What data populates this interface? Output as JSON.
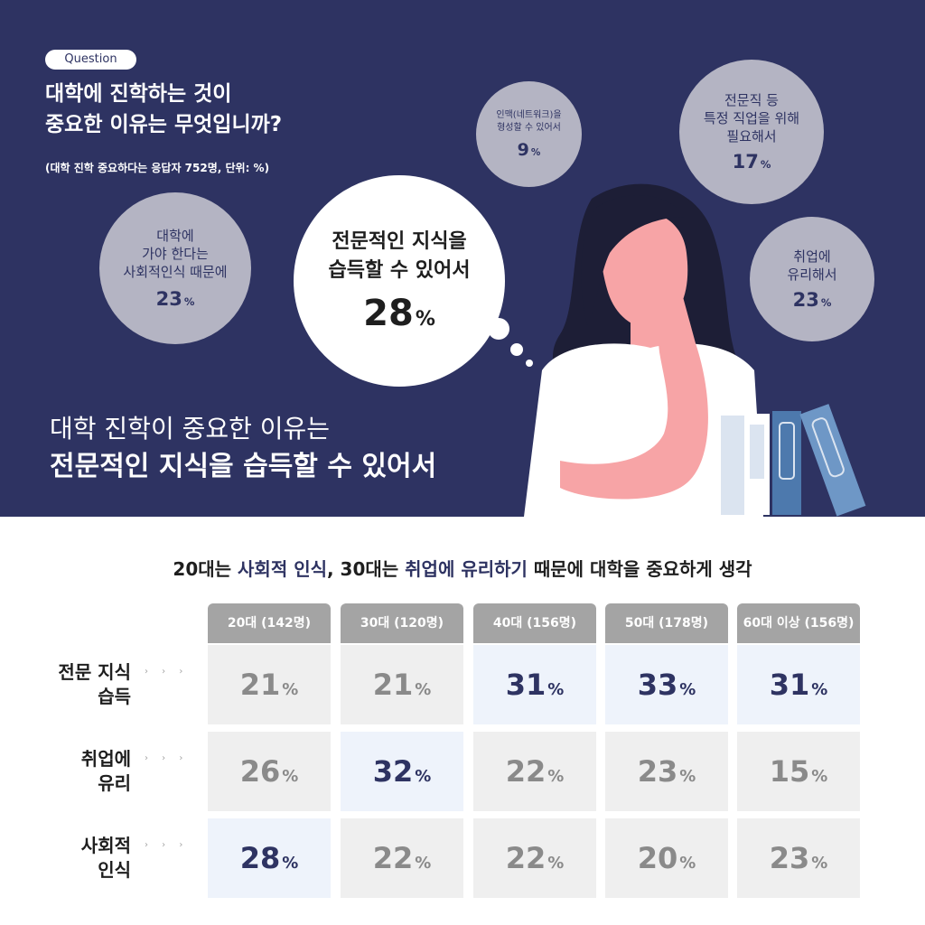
{
  "question_badge": "Question",
  "question_title": [
    "대학에 진학하는 것이",
    "중요한 이유는 무엇입니까?"
  ],
  "question_note": "(대학 진학 중요하다는 응답자 752명, 단위: %)",
  "bubbles": {
    "social": {
      "label": [
        "대학에",
        "가야 한다는",
        "사회적인식 때문에"
      ],
      "value": "23",
      "unit": "%"
    },
    "network": {
      "label": [
        "인맥(네트워크)을",
        "형성할 수 있어서"
      ],
      "value": "9",
      "unit": "%"
    },
    "job": {
      "label": [
        "전문직 등",
        "특정 직업을 위해",
        "필요해서"
      ],
      "value": "17",
      "unit": "%"
    },
    "employ": {
      "label": [
        "취업에",
        "유리해서"
      ],
      "value": "23",
      "unit": "%"
    },
    "main": {
      "label": [
        "전문적인 지식을",
        "습득할 수 있어서"
      ],
      "value": "28",
      "unit": "%"
    }
  },
  "headline": [
    "대학 진학이 중요한 이유는",
    "전문적인 지식을 습득할 수 있어서"
  ],
  "subtitle": {
    "parts": [
      "20대는 ",
      "사회적 인식",
      ", 30대는 ",
      "취업에 유리하기",
      " 때문에 대학을 중요하게 생각"
    ]
  },
  "chart_data": {
    "type": "table",
    "columns": [
      "20대 (142명)",
      "30대 (120명)",
      "40대 (156명)",
      "50대 (178명)",
      "60대 이상 (156명)"
    ],
    "rows": [
      {
        "label": [
          "전문 지식",
          "습득"
        ],
        "values": [
          21,
          21,
          31,
          33,
          31
        ],
        "highlight": [
          false,
          false,
          true,
          true,
          true
        ]
      },
      {
        "label": [
          "취업에",
          "유리"
        ],
        "values": [
          26,
          32,
          22,
          23,
          15
        ],
        "highlight": [
          false,
          true,
          false,
          false,
          false
        ]
      },
      {
        "label": [
          "사회적",
          "인식"
        ],
        "values": [
          28,
          22,
          22,
          20,
          23
        ],
        "highlight": [
          true,
          false,
          false,
          false,
          false
        ]
      }
    ],
    "unit": "%",
    "bubble_values": {
      "전문적인 지식을 습득할 수 있어서": 28,
      "대학에 가야 한다는 사회적인식 때문에": 23,
      "취업에 유리해서": 23,
      "전문직 등 특정 직업을 위해 필요해서": 17,
      "인맥(네트워크)을 형성할 수 있어서": 9
    }
  },
  "colors": {
    "navy": "#2e3362",
    "bubble_gray": "#b4b4c3",
    "header_gray": "#a4a4a4",
    "cell_gray": "#efefef",
    "cell_highlight": "#eef3fb"
  },
  "arrow_glyph": "› › ›"
}
